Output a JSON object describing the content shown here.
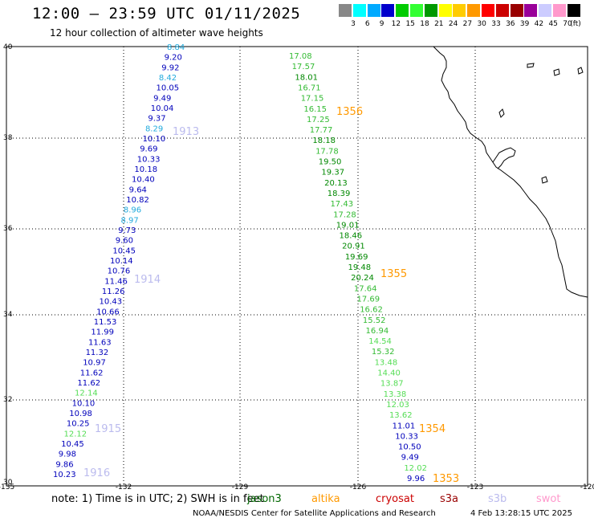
{
  "title": "12:00 – 23:59 UTC 01/11/2025",
  "subtitle": "12 hour collection of altimeter wave heights",
  "colorbar": {
    "labels": [
      "3",
      "6",
      "9",
      "12",
      "15",
      "18",
      "21",
      "24",
      "27",
      "30",
      "33",
      "36",
      "39",
      "42",
      "45",
      "70"
    ],
    "unit": "(ft)",
    "colors": [
      "#888888",
      "#00ffff",
      "#00aaff",
      "#0000cc",
      "#00cc00",
      "#33ff33",
      "#009900",
      "#ffff00",
      "#ffcc00",
      "#ff9900",
      "#ff0000",
      "#cc0000",
      "#990000",
      "#990099",
      "#ccccff",
      "#ff99cc",
      "#000000"
    ]
  },
  "map": {
    "lat_labels": [
      "40",
      "38",
      "36",
      "34",
      "32",
      "30"
    ],
    "lon_labels": [
      "-135",
      "-132",
      "-129",
      "-126",
      "-123",
      "-120"
    ]
  },
  "chart_data": {
    "type": "scatter",
    "passes": [
      {
        "id": "1913",
        "color": "#bbbbee"
      },
      {
        "id": "1914",
        "color": "#bbbbee"
      },
      {
        "id": "1915",
        "color": "#bbbbee"
      },
      {
        "id": "1916",
        "color": "#bbbbee"
      },
      {
        "id": "1356",
        "color": "#ff9900"
      },
      {
        "id": "1355",
        "color": "#ff9900"
      },
      {
        "id": "1354",
        "color": "#ff9900"
      },
      {
        "id": "1353",
        "color": "#ff9900"
      }
    ],
    "track_west": [
      "8.84",
      "9.20",
      "9.92",
      "8.42",
      "10.05",
      "9.49",
      "10.04",
      "9.37",
      "8.29",
      "10.10",
      "9.69",
      "10.33",
      "10.18",
      "10.40",
      "9.64",
      "10.82",
      "8.96",
      "8.97",
      "9.73",
      "9.60",
      "10.45",
      "10.14",
      "10.76",
      "11.46",
      "11.26",
      "10.43",
      "10.66",
      "11.53",
      "11.99",
      "11.63",
      "11.32",
      "10.97",
      "11.62",
      "11.62",
      "12.14",
      "10.10",
      "10.98",
      "10.25",
      "12.12",
      "10.45",
      "9.98",
      "9.86",
      "10.23"
    ],
    "track_east": [
      "17.08",
      "17.57",
      "18.01",
      "16.71",
      "17.15",
      "16.15",
      "17.25",
      "17.77",
      "18.18",
      "17.78",
      "19.50",
      "19.37",
      "20.13",
      "18.39",
      "17.43",
      "17.28",
      "19.01",
      "18.46",
      "20.91",
      "19.69",
      "19.48",
      "20.24",
      "17.64",
      "17.69",
      "16.62",
      "15.52",
      "16.94",
      "14.54",
      "15.32",
      "13.48",
      "14.40",
      "13.87",
      "13.38",
      "12.03",
      "13.62",
      "11.01",
      "10.33",
      "10.50",
      "9.49",
      "12.02",
      "9.96"
    ]
  },
  "note": "note:  1) Time is in UTC;  2) SWH is in feet",
  "legend": [
    "jason3",
    "altika",
    "cryosat",
    "s3a",
    "s3b",
    "swot"
  ],
  "footer": "NOAA/NESDIS Center for Satellite Applications and Research",
  "timestamp": "4 Feb 13:28:15 UTC 2025"
}
